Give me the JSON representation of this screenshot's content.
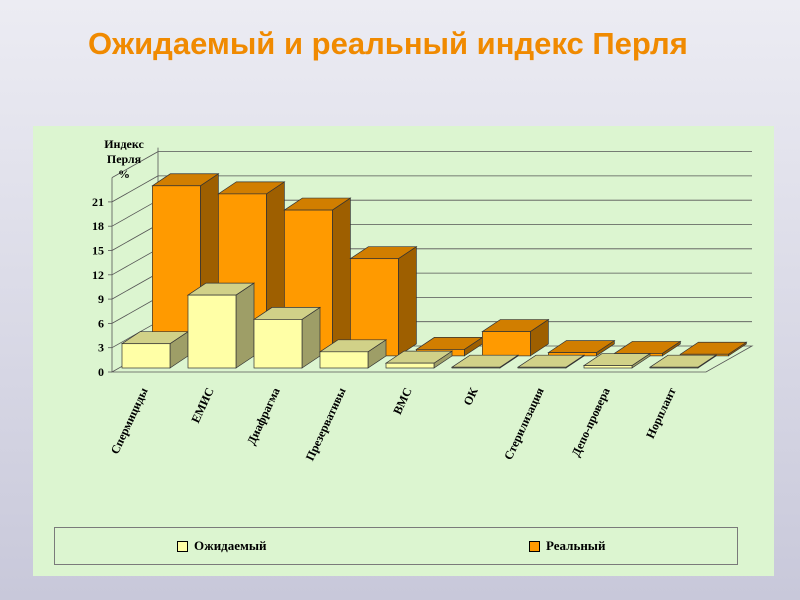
{
  "title": "Ожидаемый и реальный индекс Перля",
  "chart_data": {
    "type": "bar",
    "title": "",
    "ylabel": "Индекс Перля %",
    "xlabel": "",
    "ylim": [
      0,
      24
    ],
    "yticks": [
      "0",
      "3",
      "6",
      "9",
      "12",
      "15",
      "18",
      "21"
    ],
    "categories": [
      "Спермициды",
      "ЕМИС",
      "Диафрагма",
      "Презервативы",
      "ВМС",
      "ОК",
      "Стерилизация",
      "Депо-провера",
      "Норплант"
    ],
    "series": [
      {
        "name": "Ожидаемый",
        "color": "#ffffa6",
        "values": [
          3,
          9,
          6,
          2,
          0.6,
          0.1,
          0.1,
          0.3,
          0.1
        ]
      },
      {
        "name": "Реальный",
        "color": "#ff9a00",
        "values": [
          21,
          20,
          18,
          12,
          0.8,
          3,
          0.4,
          0.3,
          0.2
        ]
      }
    ],
    "legend": "bottom",
    "grid": true,
    "three_d": true
  }
}
